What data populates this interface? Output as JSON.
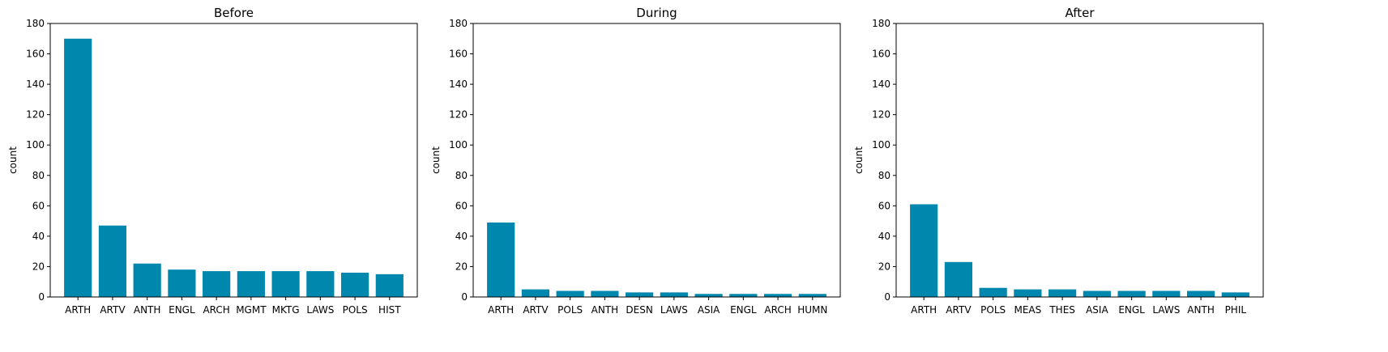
{
  "chart_data": [
    {
      "type": "bar",
      "title": "Before",
      "xlabel": "",
      "ylabel": "count",
      "ylim": [
        0,
        180
      ],
      "yticks": [
        "0",
        "20",
        "40",
        "60",
        "80",
        "100",
        "120",
        "140",
        "160",
        "180"
      ],
      "categories": [
        "ARTH",
        "ARTV",
        "ANTH",
        "ENGL",
        "ARCH",
        "MGMT",
        "MKTG",
        "LAWS",
        "POLS",
        "HIST"
      ],
      "values": [
        170,
        47,
        22,
        18,
        17,
        17,
        17,
        17,
        16,
        15
      ],
      "color": "#0087ae",
      "grid": false
    },
    {
      "type": "bar",
      "title": "During",
      "xlabel": "",
      "ylabel": "count",
      "ylim": [
        0,
        180
      ],
      "yticks": [
        "0",
        "20",
        "40",
        "60",
        "80",
        "100",
        "120",
        "140",
        "160",
        "180"
      ],
      "categories": [
        "ARTH",
        "ARTV",
        "POLS",
        "ANTH",
        "DESN",
        "LAWS",
        "ASIA",
        "ENGL",
        "ARCH",
        "HUMN"
      ],
      "values": [
        49,
        5,
        4,
        4,
        3,
        3,
        2,
        2,
        2,
        2
      ],
      "color": "#0087ae",
      "grid": false
    },
    {
      "type": "bar",
      "title": "After",
      "xlabel": "",
      "ylabel": "count",
      "ylim": [
        0,
        180
      ],
      "yticks": [
        "0",
        "20",
        "40",
        "60",
        "80",
        "100",
        "120",
        "140",
        "160",
        "180"
      ],
      "categories": [
        "ARTH",
        "ARTV",
        "POLS",
        "MEAS",
        "THES",
        "ASIA",
        "ENGL",
        "LAWS",
        "ANTH",
        "PHIL"
      ],
      "values": [
        61,
        23,
        6,
        5,
        5,
        4,
        4,
        4,
        4,
        3
      ],
      "color": "#0087ae",
      "grid": false
    }
  ]
}
